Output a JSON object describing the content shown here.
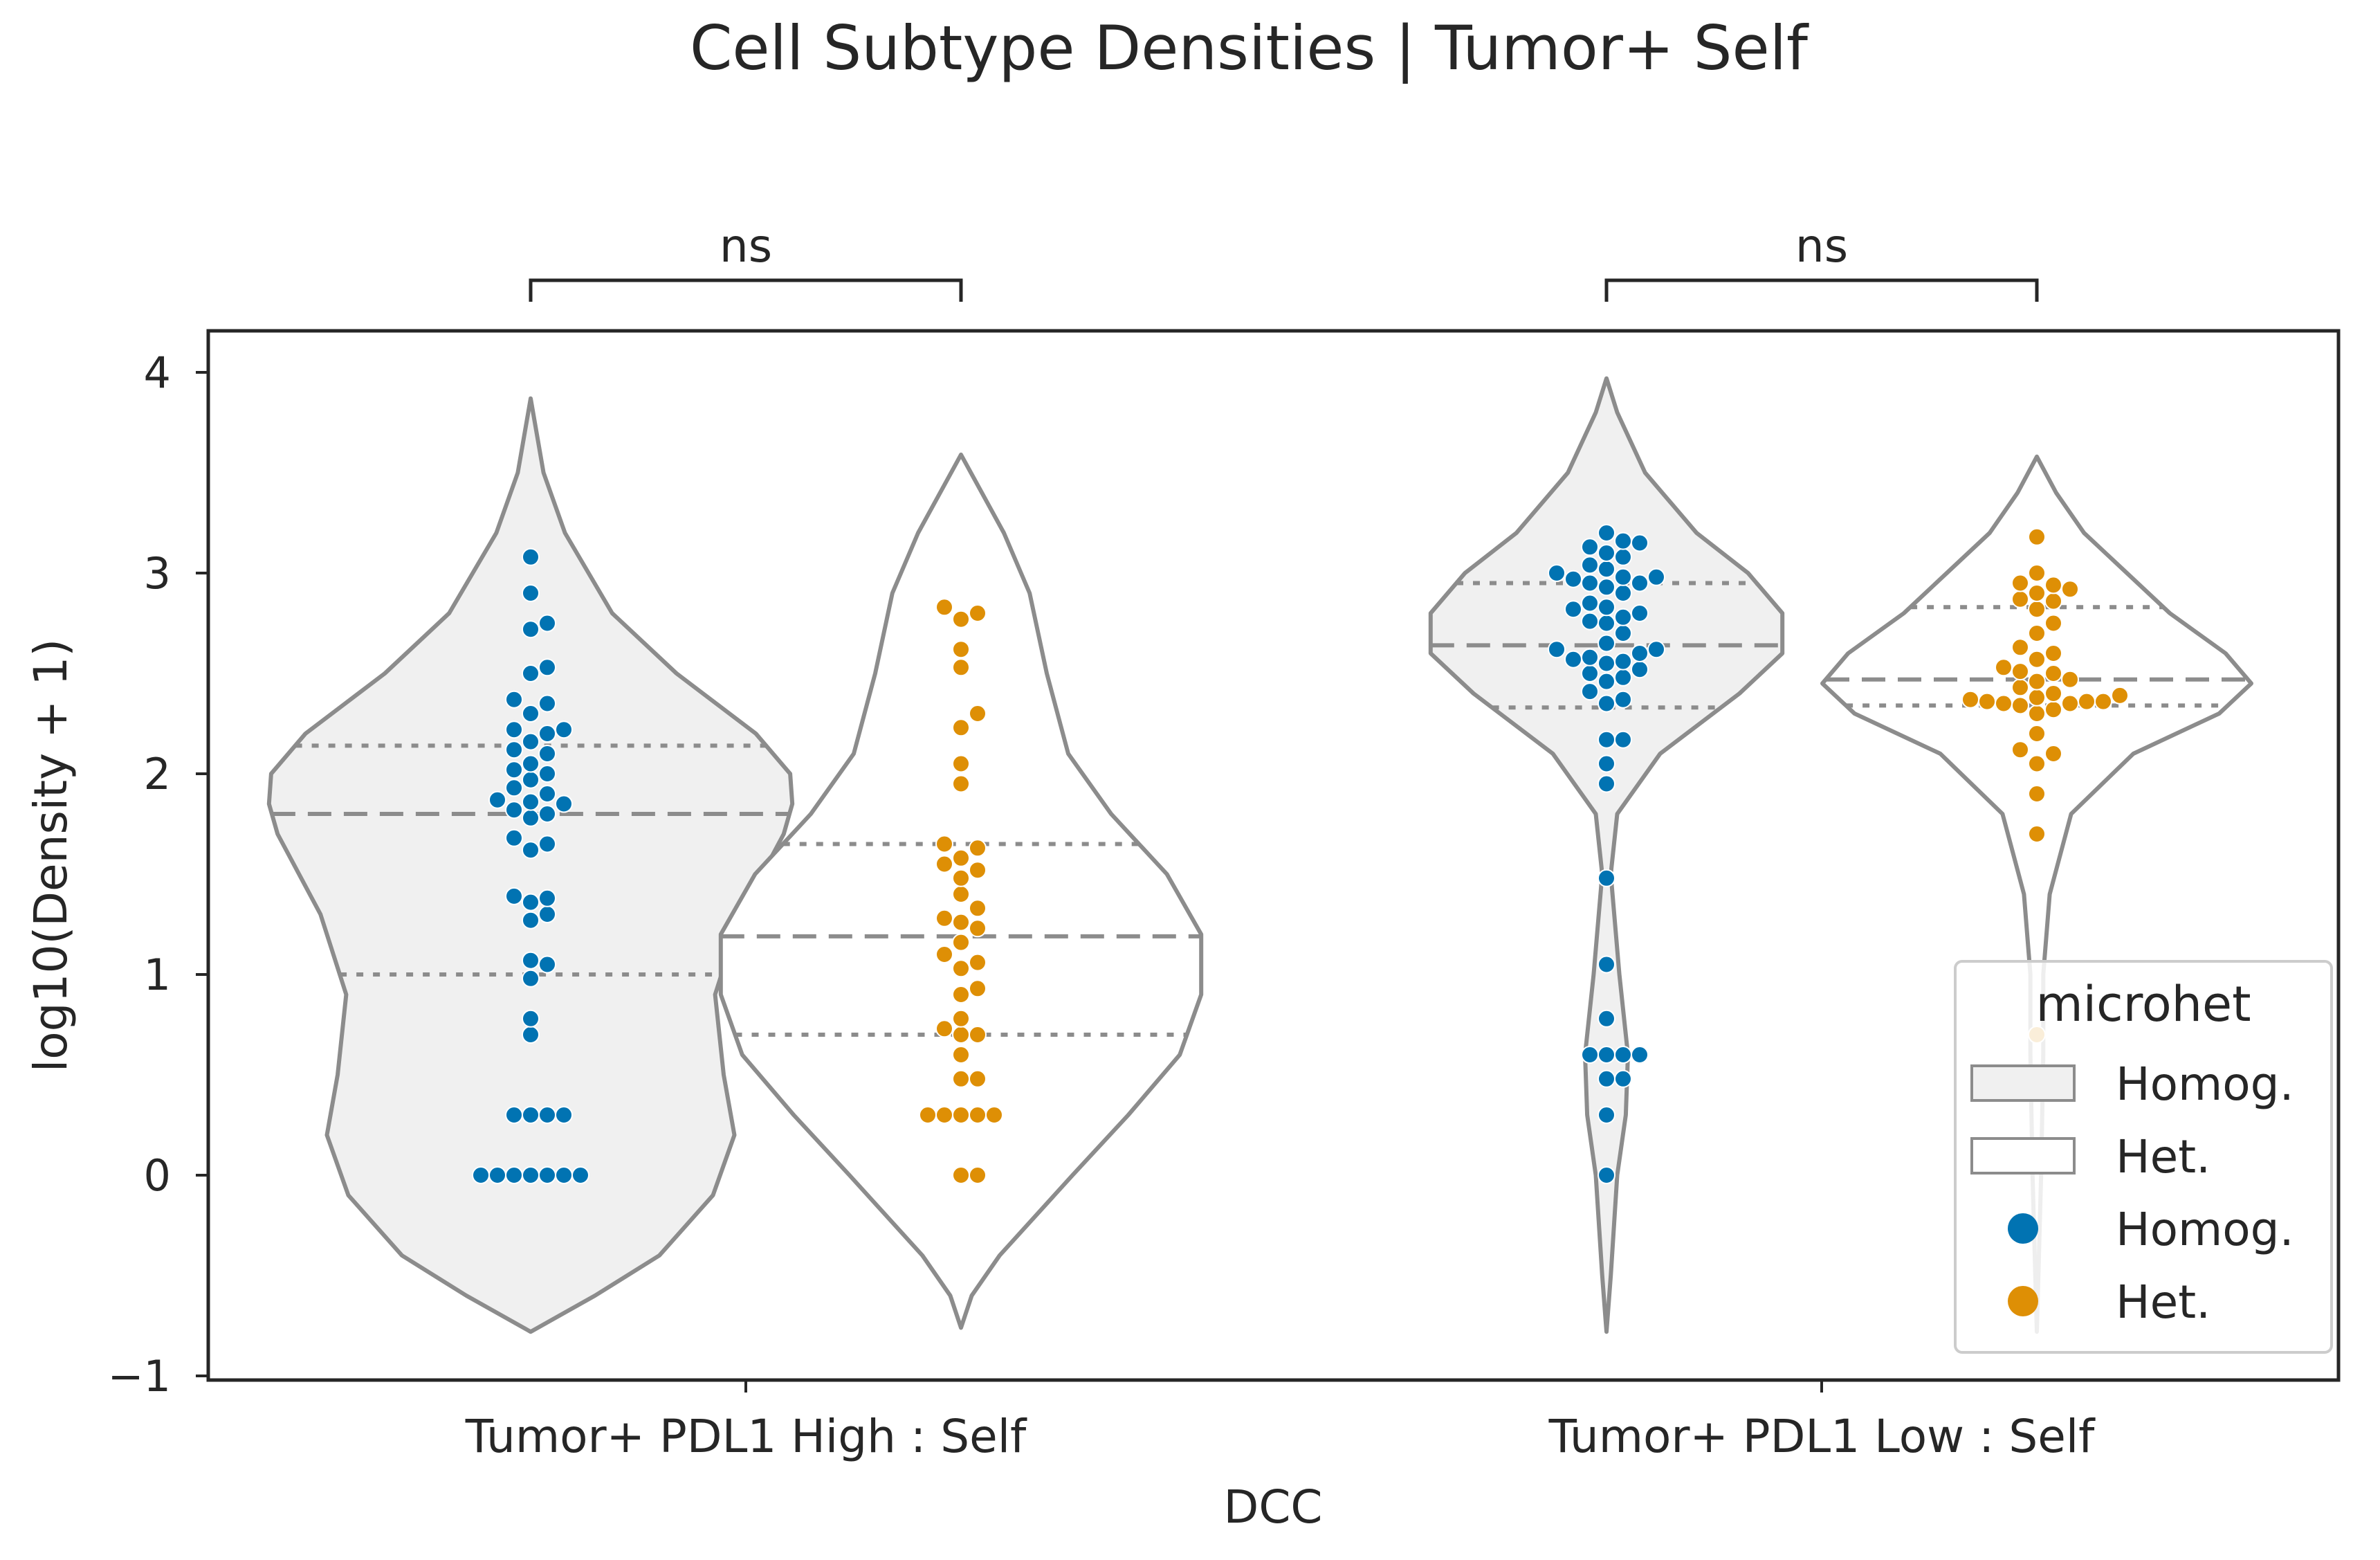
{
  "chart_data": {
    "type": "violin",
    "title": "Cell Subtype Densities | Tumor+ Self",
    "xlabel": "DCC",
    "ylabel": "log10(Density + 1)",
    "ylim": [
      -1,
      4.2
    ],
    "yticks": [
      -1,
      0,
      1,
      2,
      3,
      4
    ],
    "grid": false,
    "categories": [
      "Tumor+ PDL1 High : Self",
      "Tumor+ PDL1 Low : Self"
    ],
    "significance": [
      "ns",
      "ns"
    ],
    "legend": {
      "title": "microhet",
      "placement": "lower-right",
      "entries": [
        {
          "label": "Homog.",
          "kind": "patch",
          "color": "#f0f0f0"
        },
        {
          "label": "Het.",
          "kind": "patch",
          "color": "#ffffff"
        },
        {
          "label": "Homog.",
          "kind": "marker",
          "color": "#0173b2"
        },
        {
          "label": "Het.",
          "kind": "marker",
          "color": "#de8f05"
        }
      ]
    },
    "colors": {
      "homog_violin": "#f0f0f0",
      "het_violin": "#ffffff",
      "violin_edge": "#8c8c8c",
      "homog_points": "#0173b2",
      "het_points": "#de8f05",
      "frame": "#262626"
    },
    "violins": [
      {
        "category": "Tumor+ PDL1 High : Self",
        "series": "Homog.",
        "fill": "#f0f0f0",
        "range": [
          -0.78,
          3.87
        ],
        "quartiles": {
          "q1": 1.0,
          "median": 1.8,
          "q3": 2.14
        },
        "profile": [
          [
            -0.78,
            0.0
          ],
          [
            -0.6,
            0.3
          ],
          [
            -0.4,
            0.6
          ],
          [
            -0.1,
            0.85
          ],
          [
            0.2,
            0.95
          ],
          [
            0.5,
            0.9
          ],
          [
            0.9,
            0.86
          ],
          [
            1.3,
            0.98
          ],
          [
            1.7,
            1.18
          ],
          [
            1.85,
            1.22
          ],
          [
            2.0,
            1.21
          ],
          [
            2.2,
            1.05
          ],
          [
            2.5,
            0.68
          ],
          [
            2.8,
            0.38
          ],
          [
            3.2,
            0.16
          ],
          [
            3.5,
            0.06
          ],
          [
            3.87,
            0.0
          ]
        ]
      },
      {
        "category": "Tumor+ PDL1 High : Self",
        "series": "Het.",
        "fill": "#ffffff",
        "range": [
          -0.76,
          3.59
        ],
        "quartiles": {
          "q1": 0.7,
          "median": 1.19,
          "q3": 1.65
        },
        "profile": [
          [
            -0.76,
            0.0
          ],
          [
            -0.6,
            0.05
          ],
          [
            -0.4,
            0.18
          ],
          [
            0.0,
            0.52
          ],
          [
            0.3,
            0.78
          ],
          [
            0.6,
            1.02
          ],
          [
            0.9,
            1.12
          ],
          [
            1.2,
            1.12
          ],
          [
            1.5,
            0.96
          ],
          [
            1.8,
            0.7
          ],
          [
            2.1,
            0.5
          ],
          [
            2.5,
            0.4
          ],
          [
            2.9,
            0.32
          ],
          [
            3.2,
            0.2
          ],
          [
            3.59,
            0.0
          ]
        ]
      },
      {
        "category": "Tumor+ PDL1 Low : Self",
        "series": "Homog.",
        "fill": "#f0f0f0",
        "range": [
          -0.78,
          3.97
        ],
        "quartiles": {
          "q1": 2.33,
          "median": 2.64,
          "q3": 2.95
        },
        "profile": [
          [
            -0.78,
            0.0
          ],
          [
            -0.5,
            0.02
          ],
          [
            0.0,
            0.05
          ],
          [
            0.3,
            0.09
          ],
          [
            0.6,
            0.1
          ],
          [
            1.0,
            0.06
          ],
          [
            1.5,
            0.02
          ],
          [
            1.8,
            0.05
          ],
          [
            2.1,
            0.25
          ],
          [
            2.4,
            0.62
          ],
          [
            2.6,
            0.82
          ],
          [
            2.8,
            0.82
          ],
          [
            3.0,
            0.66
          ],
          [
            3.2,
            0.42
          ],
          [
            3.5,
            0.18
          ],
          [
            3.8,
            0.05
          ],
          [
            3.97,
            0.0
          ]
        ]
      },
      {
        "category": "Tumor+ PDL1 Low : Self",
        "series": "Het.",
        "fill": "#ffffff",
        "range": [
          -0.78,
          3.58
        ],
        "quartiles": {
          "q1": 2.34,
          "median": 2.47,
          "q3": 2.83
        },
        "profile": [
          [
            -0.78,
            0.0
          ],
          [
            0.0,
            0.02
          ],
          [
            0.6,
            0.03
          ],
          [
            1.0,
            0.03
          ],
          [
            1.4,
            0.06
          ],
          [
            1.8,
            0.16
          ],
          [
            2.1,
            0.45
          ],
          [
            2.3,
            0.85
          ],
          [
            2.45,
            1.0
          ],
          [
            2.6,
            0.88
          ],
          [
            2.8,
            0.62
          ],
          [
            3.0,
            0.42
          ],
          [
            3.2,
            0.22
          ],
          [
            3.4,
            0.09
          ],
          [
            3.58,
            0.0
          ]
        ]
      }
    ],
    "points": [
      {
        "category": "Tumor+ PDL1 High : Self",
        "series": "Homog.",
        "color": "#0173b2",
        "values": [
          0,
          0,
          0,
          0,
          0,
          0,
          0,
          0.3,
          0.3,
          0.3,
          0.3,
          0.7,
          0.78,
          0.98,
          1.05,
          1.07,
          1.27,
          1.3,
          1.36,
          1.38,
          1.39,
          1.62,
          1.65,
          1.68,
          1.78,
          1.8,
          1.82,
          1.85,
          1.86,
          1.87,
          1.9,
          1.93,
          1.97,
          2.0,
          2.02,
          2.05,
          2.1,
          2.12,
          2.16,
          2.2,
          2.22,
          2.22,
          2.3,
          2.35,
          2.37,
          2.5,
          2.53,
          2.72,
          2.75,
          2.9,
          3.08
        ]
      },
      {
        "category": "Tumor+ PDL1 High : Self",
        "series": "Het.",
        "color": "#de8f05",
        "values": [
          0,
          0,
          0.3,
          0.3,
          0.3,
          0.3,
          0.3,
          0.48,
          0.48,
          0.6,
          0.7,
          0.7,
          0.73,
          0.78,
          0.9,
          0.93,
          1.03,
          1.06,
          1.1,
          1.16,
          1.23,
          1.26,
          1.28,
          1.33,
          1.4,
          1.48,
          1.52,
          1.55,
          1.58,
          1.63,
          1.65,
          1.95,
          2.05,
          2.23,
          2.3,
          2.53,
          2.62,
          2.77,
          2.8,
          2.83
        ]
      },
      {
        "category": "Tumor+ PDL1 Low : Self",
        "series": "Homog.",
        "color": "#0173b2",
        "values": [
          0,
          0.3,
          0.48,
          0.48,
          0.6,
          0.6,
          0.6,
          0.6,
          0.78,
          1.05,
          1.48,
          1.95,
          2.05,
          2.17,
          2.17,
          2.35,
          2.37,
          2.41,
          2.46,
          2.48,
          2.5,
          2.52,
          2.55,
          2.56,
          2.57,
          2.58,
          2.6,
          2.62,
          2.62,
          2.65,
          2.7,
          2.75,
          2.76,
          2.78,
          2.8,
          2.82,
          2.83,
          2.85,
          2.9,
          2.93,
          2.95,
          2.95,
          2.97,
          2.98,
          2.98,
          3.0,
          3.02,
          3.04,
          3.08,
          3.1,
          3.13,
          3.15,
          3.16,
          3.2
        ]
      },
      {
        "category": "Tumor+ PDL1 Low : Self",
        "series": "Het.",
        "color": "#de8f05",
        "values": [
          0.7,
          1.7,
          1.9,
          2.05,
          2.1,
          2.12,
          2.2,
          2.3,
          2.32,
          2.34,
          2.35,
          2.35,
          2.36,
          2.36,
          2.36,
          2.37,
          2.38,
          2.39,
          2.4,
          2.43,
          2.46,
          2.47,
          2.5,
          2.51,
          2.53,
          2.57,
          2.6,
          2.63,
          2.7,
          2.75,
          2.82,
          2.86,
          2.87,
          2.9,
          2.92,
          2.94,
          2.95,
          3.0,
          3.18
        ]
      }
    ]
  }
}
